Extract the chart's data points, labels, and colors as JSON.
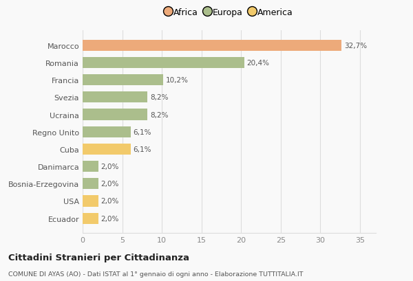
{
  "categories": [
    "Marocco",
    "Romania",
    "Francia",
    "Svezia",
    "Ucraina",
    "Regno Unito",
    "Cuba",
    "Danimarca",
    "Bosnia-Erzegovina",
    "USA",
    "Ecuador"
  ],
  "values": [
    32.7,
    20.4,
    10.2,
    8.2,
    8.2,
    6.1,
    6.1,
    2.0,
    2.0,
    2.0,
    2.0
  ],
  "labels": [
    "32,7%",
    "20,4%",
    "10,2%",
    "8,2%",
    "8,2%",
    "6,1%",
    "6,1%",
    "2,0%",
    "2,0%",
    "2,0%",
    "2,0%"
  ],
  "colors": [
    "#EDAA7A",
    "#ABBE8C",
    "#ABBE8C",
    "#ABBE8C",
    "#ABBE8C",
    "#ABBE8C",
    "#F2CA6B",
    "#ABBE8C",
    "#ABBE8C",
    "#F2CA6B",
    "#F2CA6B"
  ],
  "legend": [
    {
      "label": "Africa",
      "color": "#EDAA7A"
    },
    {
      "label": "Europa",
      "color": "#ABBE8C"
    },
    {
      "label": "America",
      "color": "#F2CA6B"
    }
  ],
  "xlim": [
    0,
    37
  ],
  "xticks": [
    0,
    5,
    10,
    15,
    20,
    25,
    30,
    35
  ],
  "title": "Cittadini Stranieri per Cittadinanza",
  "subtitle": "COMUNE DI AYAS (AO) - Dati ISTAT al 1° gennaio di ogni anno - Elaborazione TUTTITALIA.IT",
  "background_color": "#f9f9f9",
  "grid_color": "#dddddd",
  "bar_height": 0.65,
  "label_fontsize": 7.5,
  "ytick_fontsize": 8,
  "xtick_fontsize": 8
}
